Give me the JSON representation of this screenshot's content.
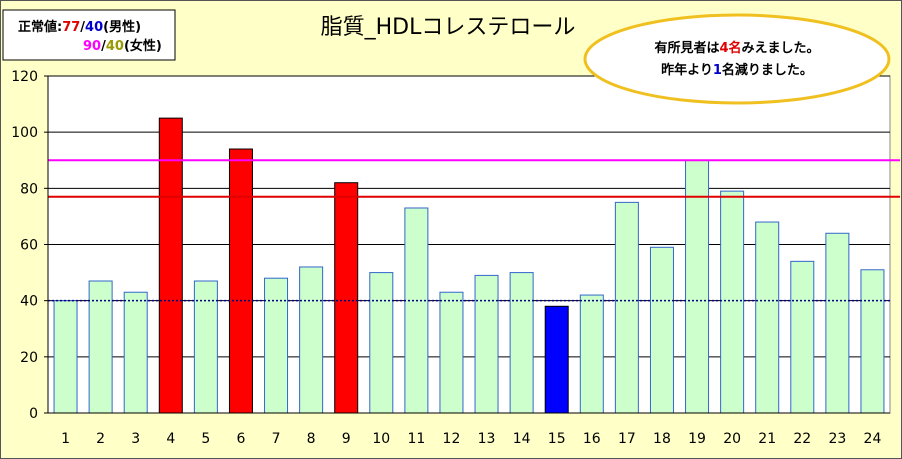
{
  "chart_data": {
    "type": "bar",
    "title": "脂質_HDLコレステロール",
    "categories": [
      "1",
      "2",
      "3",
      "4",
      "5",
      "6",
      "7",
      "8",
      "9",
      "10",
      "11",
      "12",
      "13",
      "14",
      "15",
      "16",
      "17",
      "18",
      "19",
      "20",
      "21",
      "22",
      "23",
      "24"
    ],
    "values": [
      40,
      47,
      43,
      105,
      47,
      94,
      48,
      52,
      82,
      50,
      73,
      43,
      49,
      50,
      38,
      42,
      75,
      59,
      90,
      79,
      68,
      54,
      64,
      51
    ],
    "bar_status": [
      "normal",
      "normal",
      "normal",
      "high",
      "normal",
      "high",
      "normal",
      "normal",
      "high",
      "normal",
      "normal",
      "normal",
      "normal",
      "normal",
      "low",
      "normal",
      "normal",
      "normal",
      "normal",
      "normal",
      "normal",
      "normal",
      "normal",
      "normal"
    ],
    "ylim": [
      0,
      120
    ],
    "yticks": [
      0,
      20,
      40,
      60,
      80,
      100,
      120
    ],
    "grid": true,
    "reference_lines": [
      {
        "value": 90,
        "color": "#ff00ff"
      },
      {
        "value": 77,
        "color": "#e00000"
      },
      {
        "value": 40,
        "color": "#000080",
        "style": "dotted"
      }
    ],
    "colors": {
      "normal": "#ccffcc",
      "normal_border": "#3366cc",
      "high": "#ff0000",
      "low": "#0000ff",
      "background": "#ffffc8",
      "plot_background": "#ffffff"
    }
  },
  "legend": {
    "line1": {
      "label": "正常値:",
      "high": "77",
      "sep": "/",
      "low": "40",
      "sex": "(男性)"
    },
    "line2": {
      "high": "90",
      "sep": "/",
      "low": "40",
      "sex": "(女性)"
    }
  },
  "note": {
    "line1_pre": "有所見者は",
    "line1_num": "4名",
    "line1_post": "みえました。",
    "line2_pre": "昨年より",
    "line2_num": "1",
    "line2_post": "名減りました。"
  }
}
